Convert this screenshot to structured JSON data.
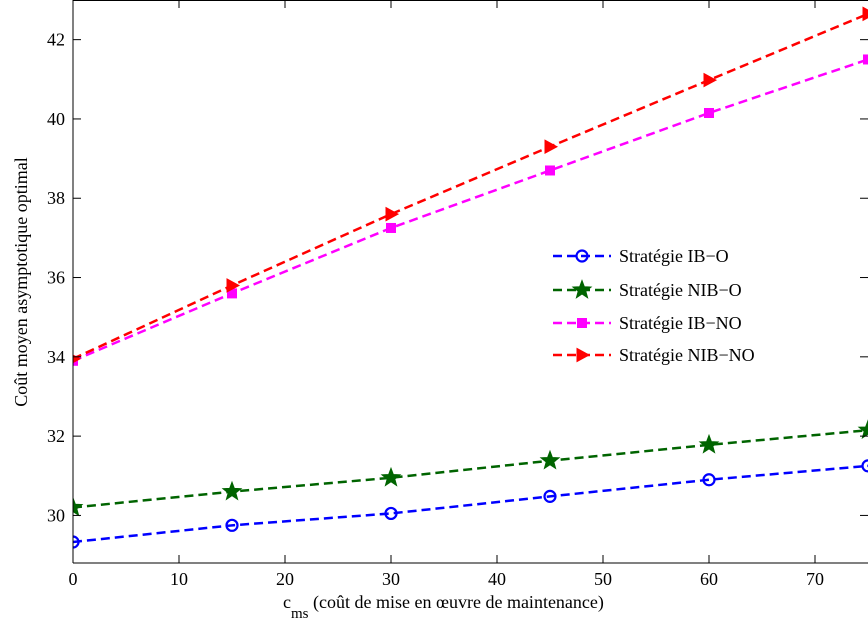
{
  "chart_data": {
    "type": "line",
    "xlabel_main": "c",
    "xlabel_sub": "ms",
    "xlabel_rest": " (coût de mise en œuvre de maintenance)",
    "ylabel": "Coût moyen asymptotique optimal",
    "xlim": [
      0,
      75
    ],
    "ylim": [
      28.8,
      43
    ],
    "xticks": [
      0,
      10,
      20,
      30,
      40,
      50,
      60,
      70
    ],
    "yticks": [
      30,
      32,
      34,
      36,
      38,
      40,
      42
    ],
    "legend_position": "center-right",
    "grid": false,
    "x": [
      0,
      15,
      30,
      45,
      60,
      75
    ],
    "series": [
      {
        "name": "Stratégie IB−O",
        "values": [
          29.33,
          29.75,
          30.05,
          30.48,
          30.9,
          31.25
        ],
        "color": "#0000ff",
        "marker": "circle"
      },
      {
        "name": "Stratégie NIB−O",
        "values": [
          30.2,
          30.6,
          30.95,
          31.38,
          31.78,
          32.15
        ],
        "color": "#006400",
        "marker": "star"
      },
      {
        "name": "Stratégie IB−NO",
        "values": [
          33.9,
          35.6,
          37.25,
          38.7,
          40.15,
          41.5
        ],
        "color": "#ff00ff",
        "marker": "square"
      },
      {
        "name": "Stratégie NIB−NO",
        "values": [
          33.95,
          35.8,
          37.6,
          39.3,
          40.98,
          42.65
        ],
        "color": "#ff0000",
        "marker": "triangle-right"
      }
    ]
  }
}
